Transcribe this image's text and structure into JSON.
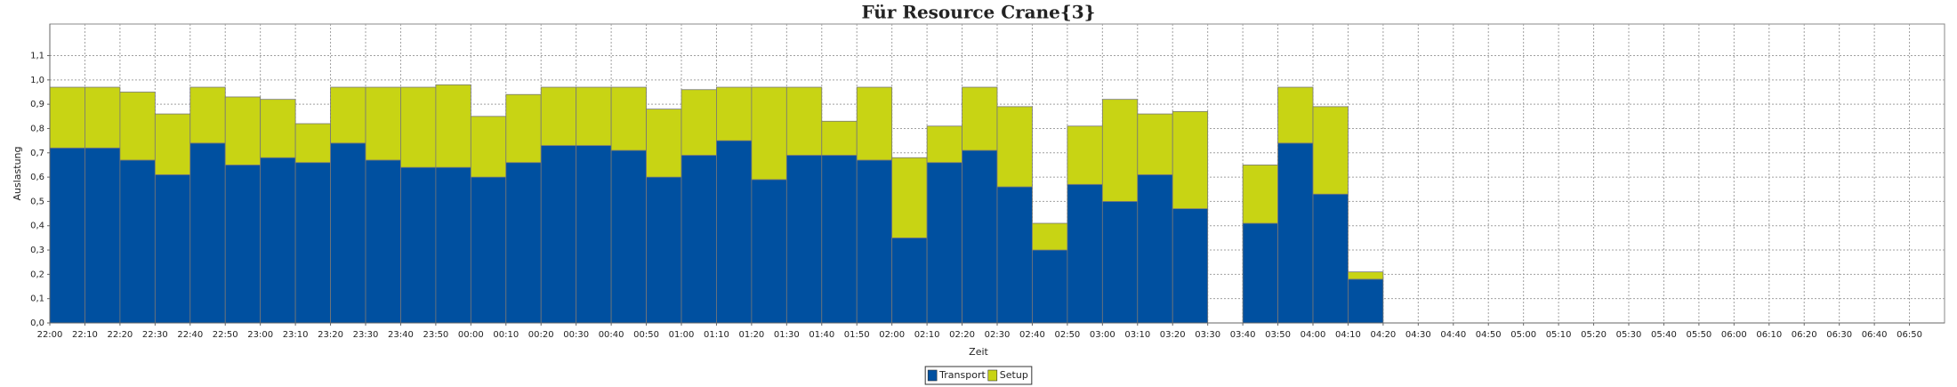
{
  "chart_data": {
    "type": "stacked_bar",
    "title": "Für Resource Crane{3}",
    "x_label": "Zeit",
    "y_label": "Auslastung",
    "categories": [
      "22:00",
      "22:10",
      "22:20",
      "22:30",
      "22:40",
      "22:50",
      "23:00",
      "23:10",
      "23:20",
      "23:30",
      "23:40",
      "23:50",
      "00:00",
      "00:10",
      "00:20",
      "00:30",
      "00:40",
      "00:50",
      "01:00",
      "01:10",
      "01:20",
      "01:30",
      "01:40",
      "01:50",
      "02:00",
      "02:10",
      "02:20",
      "02:30",
      "02:40",
      "02:50",
      "03:00",
      "03:10",
      "03:20",
      "03:30",
      "03:40",
      "03:50",
      "04:00",
      "04:10",
      "04:20",
      "04:30",
      "04:40",
      "04:50",
      "05:00",
      "05:10",
      "05:20",
      "05:30",
      "05:40",
      "05:50",
      "06:00",
      "06:10",
      "06:20",
      "06:30",
      "06:40",
      "06:50"
    ],
    "series": [
      {
        "name": "Transport",
        "color": "#0050a0",
        "values": [
          0.72,
          0.72,
          0.67,
          0.61,
          0.74,
          0.65,
          0.68,
          0.66,
          0.74,
          0.67,
          0.64,
          0.64,
          0.6,
          0.66,
          0.73,
          0.73,
          0.71,
          0.6,
          0.69,
          0.75,
          0.59,
          0.69,
          0.69,
          0.67,
          0.35,
          0.66,
          0.71,
          0.56,
          0.3,
          0.57,
          0.5,
          0.61,
          0.47,
          null,
          0.41,
          0.74,
          0.53,
          0.18,
          null,
          null,
          null,
          null,
          null,
          null,
          null,
          null,
          null,
          null,
          null,
          null,
          null,
          null,
          null,
          null
        ]
      },
      {
        "name": "Setup",
        "color": "#c8d414",
        "values": [
          0.25,
          0.25,
          0.28,
          0.25,
          0.23,
          0.28,
          0.24,
          0.16,
          0.23,
          0.3,
          0.33,
          0.34,
          0.25,
          0.28,
          0.24,
          0.24,
          0.26,
          0.28,
          0.27,
          0.22,
          0.38,
          0.28,
          0.14,
          0.3,
          0.33,
          0.15,
          0.26,
          0.33,
          0.11,
          0.24,
          0.42,
          0.25,
          0.4,
          null,
          0.24,
          0.23,
          0.36,
          0.03,
          null,
          null,
          null,
          null,
          null,
          null,
          null,
          null,
          null,
          null,
          null,
          null,
          null,
          null,
          null,
          null
        ]
      }
    ],
    "ylim": [
      0,
      1.23
    ],
    "yticks": [
      {
        "value": 0,
        "label": "0,0"
      },
      {
        "value": 0.1,
        "label": "0,1"
      },
      {
        "value": 0.2,
        "label": "0,2"
      },
      {
        "value": 0.3,
        "label": "0,3"
      },
      {
        "value": 0.4,
        "label": "0,4"
      },
      {
        "value": 0.5,
        "label": "0,5"
      },
      {
        "value": 0.6,
        "label": "0,6"
      },
      {
        "value": 0.7,
        "label": "0,7"
      },
      {
        "value": 0.8,
        "label": "0,8"
      },
      {
        "value": 0.9,
        "label": "0,9"
      },
      {
        "value": 1.0,
        "label": "1,0"
      },
      {
        "value": 1.1,
        "label": "1,1"
      }
    ],
    "grid": true,
    "legend": "bottom"
  }
}
